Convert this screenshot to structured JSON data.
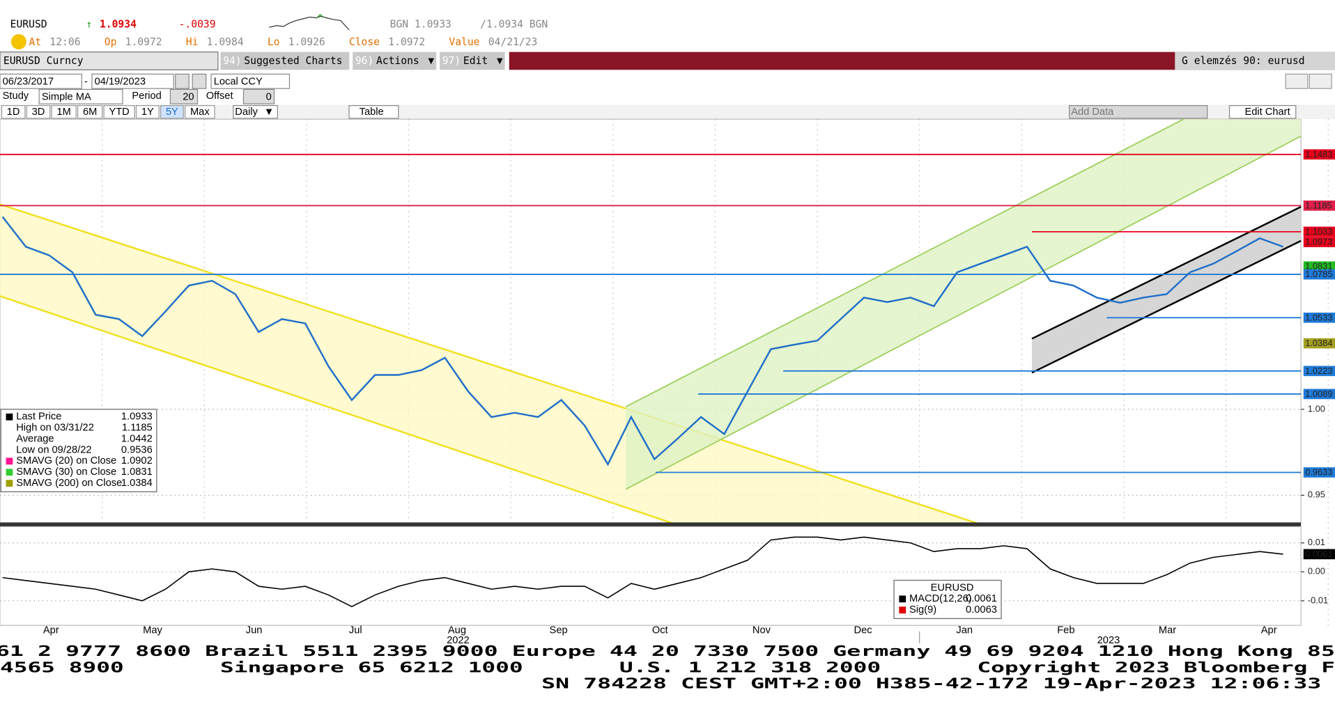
{
  "header": {
    "ticker": "EURUSD",
    "price": "1.0934",
    "change": "-.0039",
    "bid": "BGN 1.0933",
    "ask": "/1.0934 BGN",
    "fields": [
      {
        "label": "At",
        "value": "12:06"
      },
      {
        "label": "Op",
        "value": "1.0972"
      },
      {
        "label": "Hi",
        "value": "1.0984"
      },
      {
        "label": "Lo",
        "value": "1.0926"
      },
      {
        "label": "Close",
        "value": "1.0972"
      },
      {
        "label": "Value",
        "value": "04/21/23"
      }
    ]
  },
  "toolbar": {
    "security": "EURUSD Curncy",
    "menus": [
      {
        "num": "94)",
        "label": "Suggested Charts"
      },
      {
        "num": "96)",
        "label": "Actions"
      },
      {
        "num": "97)",
        "label": "Edit"
      }
    ],
    "function": "G elemzés 90: eurusd"
  },
  "controls": {
    "start_date": "06/23/2017",
    "end_date": "04/19/2023",
    "currency": "Local CCY",
    "study_label": "Study",
    "study": "Simple MA",
    "period_label": "Period",
    "period": "20",
    "offset_label": "Offset",
    "offset": "0",
    "ranges": [
      "1D",
      "3D",
      "1M",
      "6M",
      "YTD",
      "1Y",
      "5Y",
      "Max"
    ],
    "active_range": "5Y",
    "frequency": "Daily",
    "table": "Table",
    "add_data": "Add Data",
    "edit_chart": "Edit Chart"
  },
  "chart_data": [
    {
      "type": "line",
      "grid": true,
      "x_labels": [
        "Apr",
        "May",
        "Jun",
        "Jul",
        "Aug",
        "Sep",
        "Oct",
        "Nov",
        "Dec",
        "Jan",
        "Feb",
        "Mar",
        "Apr"
      ],
      "x_year_labels": [
        "2022",
        "2023"
      ],
      "ylim": [
        0.9337,
        1.1688
      ],
      "yticks": [
        {
          "value": 1,
          "label": "1.00"
        },
        0.95
      ],
      "series": [
        {
          "name": "Last Price",
          "color": "#1f6fc8",
          "values": [
            1.112,
            1.0946,
            1.0896,
            1.0797,
            1.055,
            1.0525,
            1.0426,
            1.057,
            1.072,
            1.0748,
            1.067,
            1.045,
            1.0525,
            1.05,
            1.025,
            1.0054,
            1.02,
            1.02,
            1.0228,
            1.03,
            1.0104,
            0.9955,
            0.998,
            0.9955,
            1.0054,
            0.9906,
            0.968,
            0.9955,
            0.971,
            0.983,
            0.9955,
            0.9856,
            1.0104,
            1.035,
            1.0376,
            1.04,
            1.0525,
            1.065,
            1.0624,
            1.065,
            1.06,
            1.0797,
            1.0847,
            1.0896,
            1.0946,
            1.0748,
            1.072,
            1.065,
            1.062,
            1.065,
            1.067,
            1.0797,
            1.0847,
            1.092,
            1.0995,
            1.0946
          ]
        }
      ],
      "levels": [
        {
          "value": 1.1483,
          "color": "#e8001c",
          "line": true
        },
        {
          "value": 1.1185,
          "color": "#e0204a",
          "line": true
        },
        {
          "value": 1.1033,
          "color": "#e8001c",
          "line": true
        },
        {
          "value": 1.0973,
          "color": "#e8001c",
          "line": false
        },
        {
          "value": 1.0831,
          "color": "#22bb22",
          "line": false
        },
        {
          "value": 1.0785,
          "color": "#1f7ad8",
          "line": true
        },
        {
          "value": 1.0533,
          "color": "#1f7ad8",
          "line": true
        },
        {
          "value": 1.0384,
          "color": "#a5a020",
          "line": false
        },
        {
          "value": 1.0223,
          "color": "#1f7ad8",
          "line": true
        },
        {
          "value": 1.0089,
          "color": "#1f7ad8",
          "line": true
        },
        {
          "value": 0.9633,
          "color": "#1f7ad8",
          "line": true
        }
      ],
      "legend": {
        "rows": [
          {
            "label": "Last Price",
            "value": "1.0933",
            "color": "#000000"
          },
          {
            "label": "High on 03/31/22",
            "value": "1.1185"
          },
          {
            "label": "Average",
            "value": "1.0442"
          },
          {
            "label": "Low on 09/28/22",
            "value": "0.9536"
          },
          {
            "label": "SMAVG (20)  on Close",
            "value": "1.0902",
            "color": "#ff1493"
          },
          {
            "label": "SMAVG (30)  on Close",
            "value": "1.0831",
            "color": "#33cc33"
          },
          {
            "label": "SMAVG (200)  on Close",
            "value": "1.0384",
            "color": "#a0a000"
          }
        ]
      }
    },
    {
      "type": "line",
      "grid": true,
      "ylim": [
        -0.0185,
        0.0153
      ],
      "yticks": [
        0.01,
        {
          "value": 0,
          "label": "0.00"
        },
        -0.01
      ],
      "series": [
        {
          "name": "MACD(12,26)",
          "color": "#000000",
          "values": [
            -0.002,
            -0.003,
            -0.004,
            -0.005,
            -0.006,
            -0.008,
            -0.01,
            -0.006,
            0,
            0.001,
            0,
            -0.005,
            -0.006,
            -0.005,
            -0.008,
            -0.012,
            -0.008,
            -0.005,
            -0.003,
            -0.002,
            -0.004,
            -0.006,
            -0.005,
            -0.006,
            -0.005,
            -0.005,
            -0.009,
            -0.004,
            -0.006,
            -0.004,
            -0.002,
            0.001,
            0.004,
            0.011,
            0.012,
            0.012,
            0.011,
            0.012,
            0.011,
            0.01,
            0.007,
            0.008,
            0.008,
            0.009,
            0.008,
            0.001,
            -0.002,
            -0.004,
            -0.004,
            -0.004,
            -0.001,
            0.003,
            0.005,
            0.006,
            0.007,
            0.0061
          ]
        }
      ],
      "last_label": {
        "value": 0.0061,
        "label": "0.0061"
      },
      "legend": {
        "title": "EURUSD",
        "rows": [
          {
            "label": "MACD(12,26)",
            "value": "0.0061",
            "color": "#000000"
          },
          {
            "label": "Sig(9)",
            "value": "0.0063",
            "color": "#e00000"
          }
        ]
      }
    }
  ],
  "footer": {
    "lines": [
      "61 2 9777 8600 Brazil 5511 2395 9000 Europe 44 20 7330 7500 Germany 49 69 9204 1210 Hong Kong 85",
      "4565 8900       Singapore 65 6212 1000       U.S. 1 212 318 2000       Copyright 2023 Bloomberg F",
      "SN 784228 CEST GMT+2:00 H385-42-172 19-Apr-2023 12:06:33"
    ]
  }
}
